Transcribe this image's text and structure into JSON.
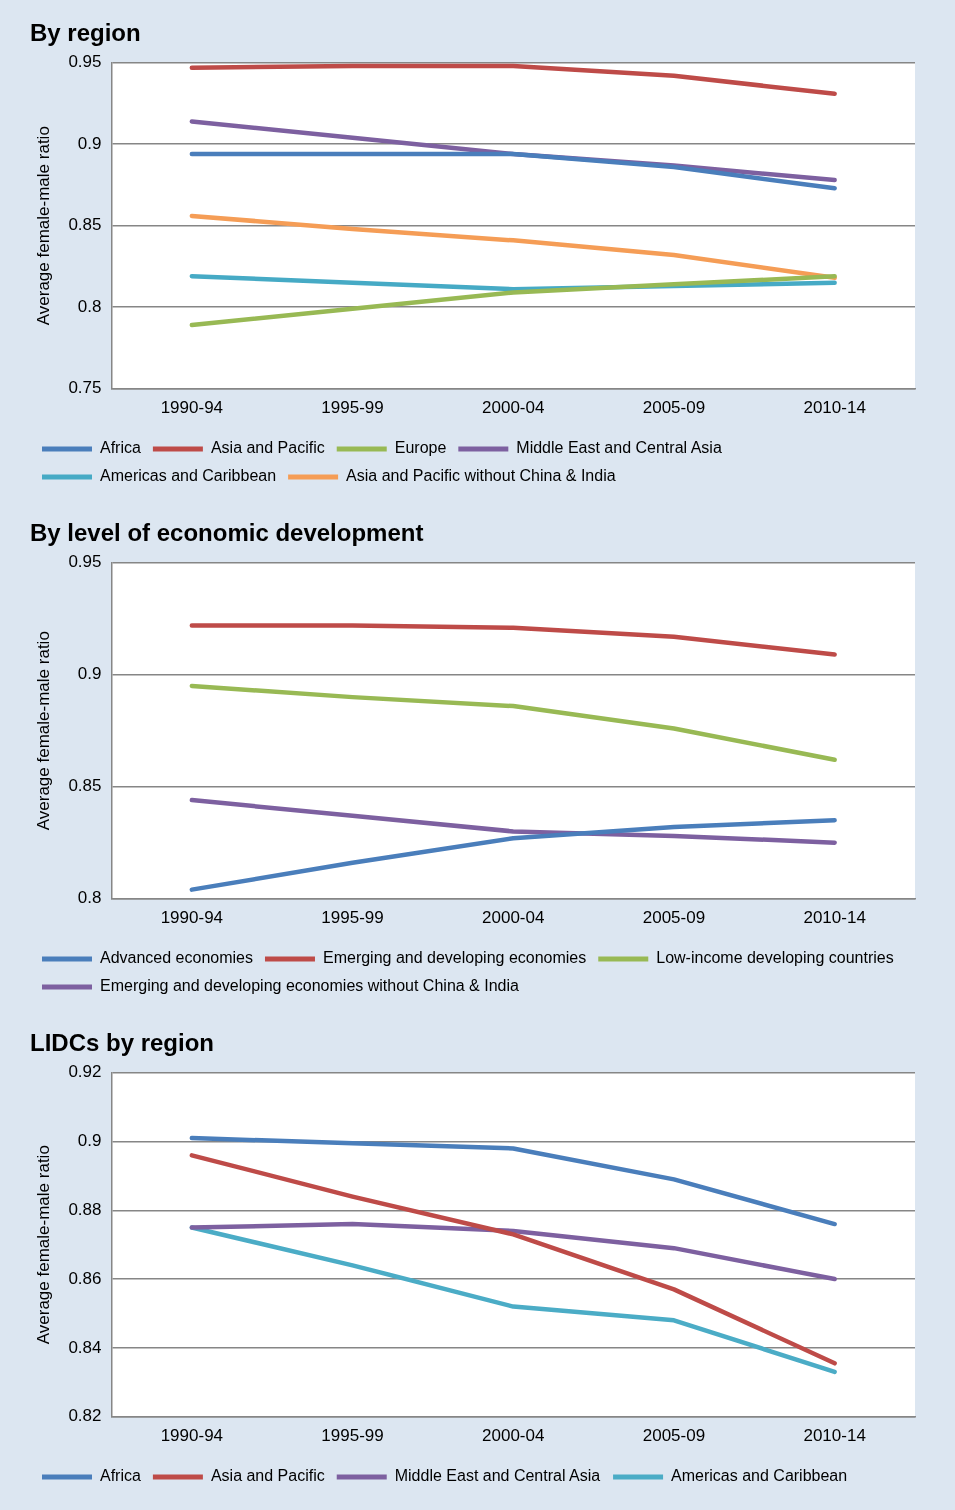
{
  "chart_data": [
    {
      "type": "line",
      "title": "By region",
      "ylabel": "Average female-male ratio",
      "categories": [
        "1990-94",
        "1995-99",
        "2000-04",
        "2005-09",
        "2010-14"
      ],
      "ylim": [
        0.75,
        0.95
      ],
      "yticks": [
        0.75,
        0.8,
        0.85,
        0.9,
        0.95
      ],
      "grid": "y",
      "legend": "bottom",
      "marker": "none",
      "line_style": "solid",
      "series": [
        {
          "name": "Africa",
          "color": "#4a7ebb",
          "values": [
            0.894,
            0.894,
            0.894,
            0.886,
            0.873
          ]
        },
        {
          "name": "Asia and Pacific",
          "color": "#be4b48",
          "values": [
            0.947,
            0.948,
            0.948,
            0.942,
            0.931
          ]
        },
        {
          "name": "Europe",
          "color": "#98b954",
          "values": [
            0.789,
            0.799,
            0.809,
            0.814,
            0.819
          ]
        },
        {
          "name": "Middle East and Central Asia",
          "color": "#7d60a0",
          "values": [
            0.914,
            0.904,
            0.894,
            0.887,
            0.878
          ]
        },
        {
          "name": "Americas and Caribbean",
          "color": "#46aac5",
          "values": [
            0.819,
            0.815,
            0.811,
            0.813,
            0.815
          ]
        },
        {
          "name": "Asia and Pacific without China & India",
          "color": "#f59d56",
          "values": [
            0.856,
            0.848,
            0.841,
            0.832,
            0.818
          ]
        }
      ]
    },
    {
      "type": "line",
      "title": "By level of economic development",
      "ylabel": "Average female-male ratio",
      "categories": [
        "1990-94",
        "1995-99",
        "2000-04",
        "2005-09",
        "2010-14"
      ],
      "ylim": [
        0.8,
        0.95
      ],
      "yticks": [
        0.8,
        0.85,
        0.9,
        0.95
      ],
      "grid": "y",
      "legend": "bottom",
      "marker": "none",
      "line_style": "solid",
      "series": [
        {
          "name": "Advanced economies",
          "color": "#4a7ebb",
          "values": [
            0.804,
            0.816,
            0.827,
            0.832,
            0.835
          ]
        },
        {
          "name": "Emerging and developing economies",
          "color": "#be4b48",
          "values": [
            0.922,
            0.922,
            0.921,
            0.917,
            0.909
          ]
        },
        {
          "name": "Low-income developing countries",
          "color": "#98b954",
          "values": [
            0.895,
            0.89,
            0.886,
            0.876,
            0.862
          ]
        },
        {
          "name": "Emerging and developing economies without China & India",
          "color": "#7d60a0",
          "values": [
            0.844,
            0.837,
            0.83,
            0.828,
            0.825
          ]
        }
      ]
    },
    {
      "type": "line",
      "title": "LIDCs by region",
      "ylabel": "Average female-male ratio",
      "categories": [
        "1990-94",
        "1995-99",
        "2000-04",
        "2005-09",
        "2010-14"
      ],
      "ylim": [
        0.82,
        0.92
      ],
      "yticks": [
        0.82,
        0.84,
        0.86,
        0.88,
        0.9,
        0.92
      ],
      "grid": "y",
      "legend": "bottom",
      "marker": "none",
      "line_style": "solid",
      "series": [
        {
          "name": "Africa",
          "color": "#4a7ebb",
          "values": [
            0.901,
            0.8995,
            0.898,
            0.889,
            0.876
          ]
        },
        {
          "name": "Asia and Pacific",
          "color": "#be4b48",
          "values": [
            0.896,
            0.884,
            0.873,
            0.857,
            0.8355
          ]
        },
        {
          "name": "Middle East and Central Asia",
          "color": "#7d60a0",
          "values": [
            0.875,
            0.876,
            0.874,
            0.869,
            0.86
          ]
        },
        {
          "name": "Americas and Caribbean",
          "color": "#4bacc6",
          "values": [
            0.875,
            0.864,
            0.852,
            0.848,
            0.833
          ]
        }
      ]
    }
  ]
}
